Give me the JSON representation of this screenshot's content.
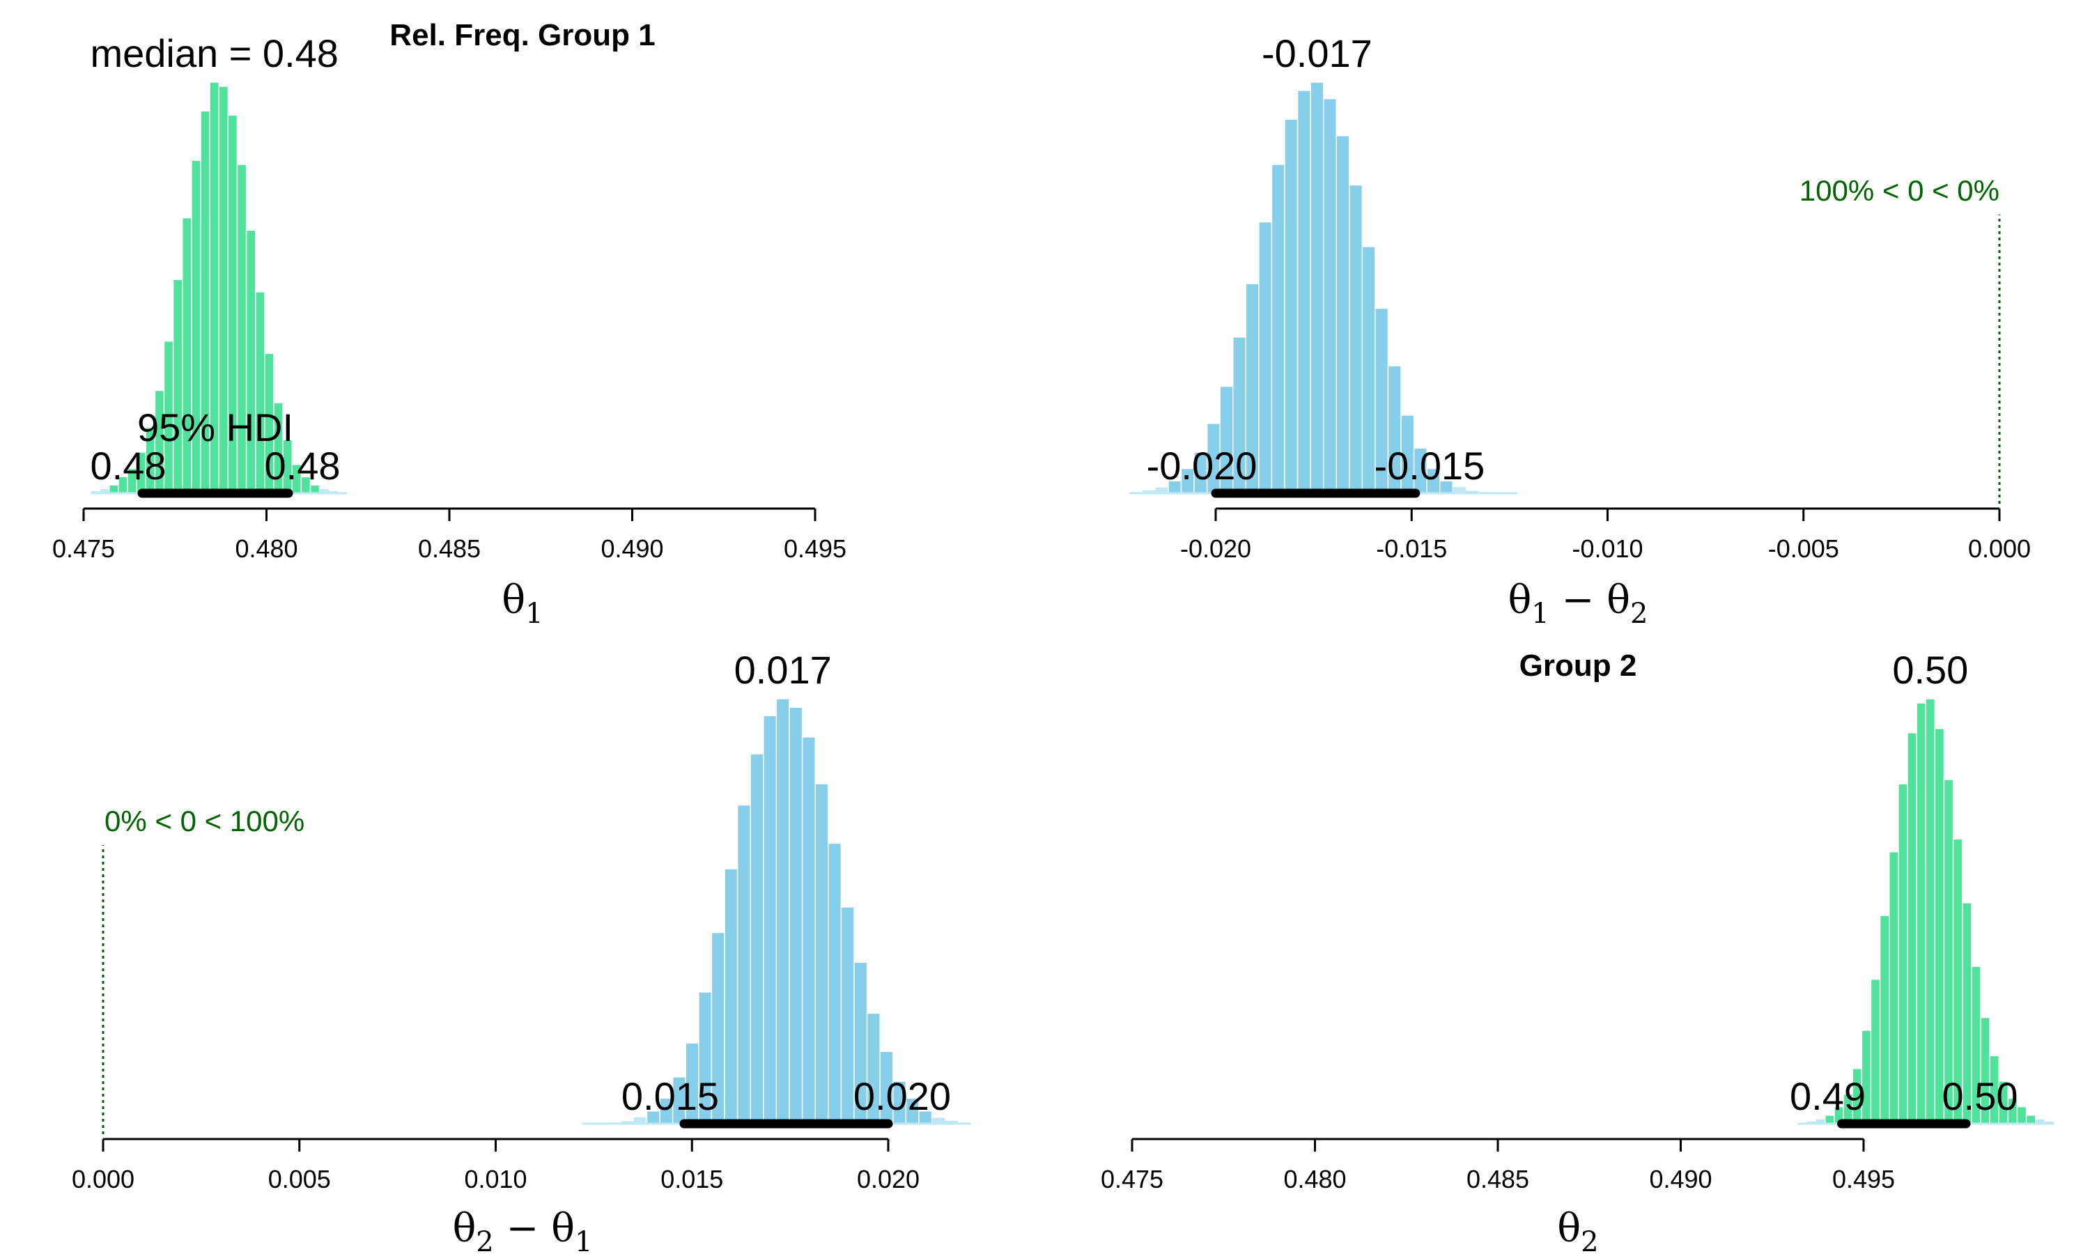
{
  "figure": {
    "colors": {
      "green": "#4ee29b",
      "blue": "#87ceeb",
      "bar_edge": "#ffffff",
      "tail": "#bfe8f7",
      "ref": "#006400",
      "hdi": "#000000"
    }
  },
  "chart_data": [
    {
      "id": "p1",
      "type": "bar",
      "title": "Rel. Freq. Group 1",
      "xlabel": {
        "base": "θ",
        "sub": "1",
        "rest": "",
        "rest_sub": ""
      },
      "xlim": [
        0.475,
        0.495
      ],
      "xticks": [
        "0.475",
        "0.480",
        "0.485",
        "0.490",
        "0.495"
      ],
      "color": "#4ee29b",
      "hist": {
        "start": 0.4752,
        "width": 0.00025,
        "heights": [
          0.005,
          0.01,
          0.02,
          0.04,
          0.06,
          0.1,
          0.16,
          0.25,
          0.37,
          0.52,
          0.67,
          0.81,
          0.93,
          1.0,
          0.99,
          0.92,
          0.8,
          0.64,
          0.49,
          0.34,
          0.22,
          0.13,
          0.07,
          0.04,
          0.02,
          0.01,
          0.005,
          0.002
        ]
      },
      "median_label": "median = 0.48",
      "hdi": {
        "lo": 0.4766,
        "hi": 0.4806,
        "lo_label": "0.48",
        "hi_label": "0.48",
        "title": "95% HDI"
      }
    },
    {
      "id": "p2",
      "type": "bar",
      "title": "",
      "xlabel": {
        "base": "θ",
        "sub": "1",
        "rest": " − θ",
        "rest_sub": "2"
      },
      "xlim": [
        -0.02,
        0.0
      ],
      "xticks": [
        "-0.020",
        "-0.015",
        "-0.010",
        "-0.005",
        "0.000"
      ],
      "color": "#87ceeb",
      "hist": {
        "start": -0.0222,
        "width": 0.00033,
        "heights": [
          0.003,
          0.007,
          0.014,
          0.03,
          0.06,
          0.1,
          0.17,
          0.26,
          0.38,
          0.51,
          0.66,
          0.8,
          0.91,
          0.98,
          1.0,
          0.96,
          0.87,
          0.75,
          0.6,
          0.45,
          0.31,
          0.19,
          0.11,
          0.06,
          0.03,
          0.015,
          0.006,
          0.003,
          0.001,
          0.001
        ]
      },
      "median_label": "-0.017",
      "hdi": {
        "lo": -0.02,
        "hi": -0.0149,
        "lo_label": "-0.020",
        "hi_label": "-0.015",
        "title": ""
      },
      "ref": {
        "value": 0.0,
        "label": "100% < 0 < 0%"
      }
    },
    {
      "id": "p3",
      "type": "bar",
      "title": "",
      "xlabel": {
        "base": "θ",
        "sub": "2",
        "rest": " − θ",
        "rest_sub": "1"
      },
      "xlim": [
        0.0,
        0.02
      ],
      "xticks": [
        "0.000",
        "0.005",
        "0.010",
        "0.015",
        "0.020"
      ],
      "color": "#87ceeb",
      "hist": {
        "start": 0.0122,
        "width": 0.00033,
        "heights": [
          0.001,
          0.001,
          0.003,
          0.006,
          0.015,
          0.03,
          0.06,
          0.11,
          0.19,
          0.31,
          0.45,
          0.6,
          0.75,
          0.87,
          0.96,
          1.0,
          0.98,
          0.91,
          0.8,
          0.66,
          0.51,
          0.38,
          0.26,
          0.17,
          0.1,
          0.06,
          0.03,
          0.014,
          0.007,
          0.003
        ]
      },
      "median_label": "0.017",
      "hdi": {
        "lo": 0.0148,
        "hi": 0.02,
        "lo_label": "0.015",
        "hi_label": "0.020",
        "title": ""
      },
      "ref": {
        "value": 0.0,
        "label": "0% < 0 < 100%"
      }
    },
    {
      "id": "p4",
      "type": "bar",
      "title": "Group 2",
      "xlabel": {
        "base": "θ",
        "sub": "2",
        "rest": "",
        "rest_sub": ""
      },
      "xlim": [
        0.475,
        0.495
      ],
      "xticks": [
        "0.475",
        "0.480",
        "0.485",
        "0.490",
        "0.495"
      ],
      "color": "#4ee29b",
      "hist": {
        "start": 0.4932,
        "width": 0.00025,
        "heights": [
          0.002,
          0.005,
          0.01,
          0.02,
          0.04,
          0.07,
          0.13,
          0.22,
          0.34,
          0.49,
          0.64,
          0.8,
          0.92,
          0.99,
          1.0,
          0.93,
          0.81,
          0.67,
          0.52,
          0.37,
          0.25,
          0.16,
          0.1,
          0.06,
          0.04,
          0.02,
          0.01,
          0.005
        ]
      },
      "median_label": "0.50",
      "hdi": {
        "lo": 0.4944,
        "hi": 0.4978,
        "lo_label": "0.49",
        "hi_label": "0.50",
        "title": ""
      }
    }
  ]
}
